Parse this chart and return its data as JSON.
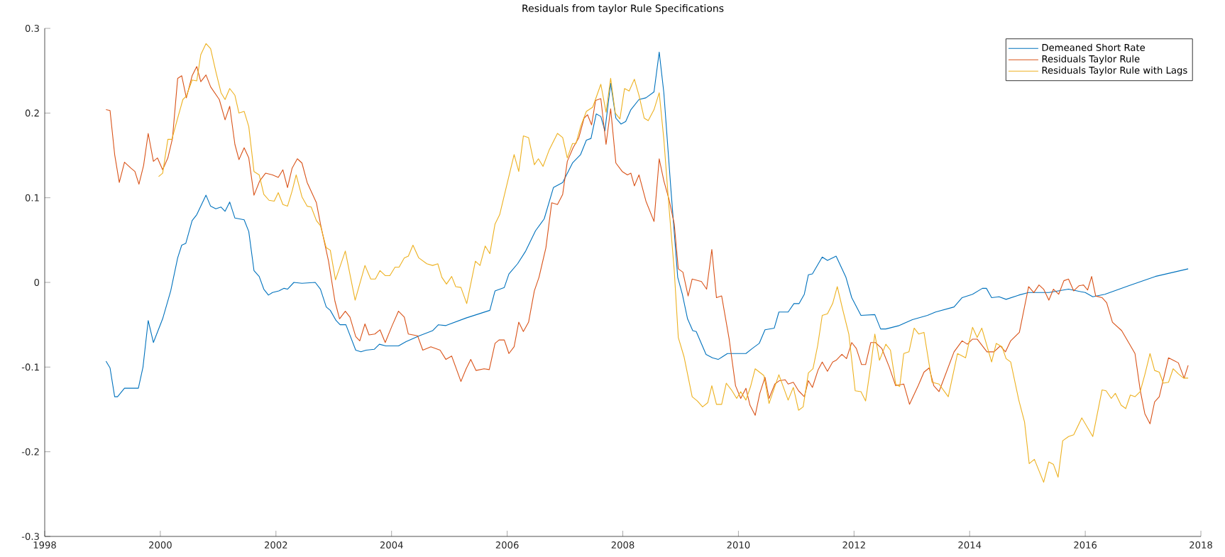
{
  "chart_data": {
    "type": "line",
    "title": "Residuals from taylor Rule Specifications",
    "xlim": [
      1998,
      2018
    ],
    "ylim": [
      -0.3,
      0.3
    ],
    "xticks": [
      1998,
      2000,
      2002,
      2004,
      2006,
      2008,
      2010,
      2012,
      2014,
      2016,
      2018
    ],
    "yticks": [
      -0.3,
      -0.2,
      -0.1,
      0,
      0.1,
      0.2,
      0.3
    ],
    "legend": "top right",
    "series": [
      {
        "name": "Demeaned Short Rate",
        "color": "#0072bd",
        "x": [
          1999.06,
          1999.13,
          1999.21,
          1999.26,
          1999.38,
          1999.49,
          1999.62,
          1999.7,
          1999.79,
          1999.88,
          2000.04,
          2000.18,
          2000.3,
          2000.37,
          2000.44,
          2000.55,
          2000.63,
          2000.79,
          2000.87,
          2000.96,
          2001.05,
          2001.12,
          2001.2,
          2001.29,
          2001.45,
          2001.53,
          2001.62,
          2001.71,
          2001.79,
          2001.87,
          2001.94,
          2002.05,
          2002.14,
          2002.2,
          2002.31,
          2002.45,
          2002.68,
          2002.77,
          2002.87,
          2002.94,
          2003.04,
          2003.11,
          2003.21,
          2003.38,
          2003.47,
          2003.56,
          2003.7,
          2003.79,
          2003.9,
          2004.12,
          2004.25,
          2004.48,
          2004.71,
          2004.81,
          2004.94,
          2005.29,
          2005.7,
          2005.79,
          2005.95,
          2006.03,
          2006.18,
          2006.32,
          2006.49,
          2006.64,
          2006.8,
          2006.96,
          2007.13,
          2007.27,
          2007.37,
          2007.45,
          2007.54,
          2007.62,
          2007.69,
          2007.79,
          2007.88,
          2007.97,
          2008.05,
          2008.14,
          2008.28,
          2008.4,
          2008.54,
          2008.63,
          2008.71,
          2008.83,
          2008.95,
          2009.03,
          2009.12,
          2009.21,
          2009.27,
          2009.44,
          2009.55,
          2009.65,
          2009.72,
          2009.81,
          2009.9,
          2010.13,
          2010.24,
          2010.36,
          2010.46,
          2010.62,
          2010.7,
          2010.86,
          2010.96,
          2011.05,
          2011.14,
          2011.21,
          2011.28,
          2011.45,
          2011.54,
          2011.69,
          2011.86,
          2011.96,
          2012.12,
          2012.36,
          2012.46,
          2012.55,
          2012.78,
          2013.01,
          2013.27,
          2013.41,
          2013.73,
          2013.87,
          2014.05,
          2014.22,
          2014.29,
          2014.38,
          2014.51,
          2014.63,
          2014.85,
          2015.02,
          2015.37,
          2015.71,
          2016.0,
          2016.13,
          2016.34,
          2016.75,
          2017.21,
          2017.78
        ],
        "values": [
          -0.093,
          -0.101,
          -0.135,
          -0.135,
          -0.125,
          -0.125,
          -0.125,
          -0.1,
          -0.045,
          -0.071,
          -0.043,
          -0.01,
          0.029,
          0.044,
          0.046,
          0.073,
          0.08,
          0.103,
          0.09,
          0.087,
          0.089,
          0.084,
          0.095,
          0.076,
          0.074,
          0.06,
          0.014,
          0.007,
          -0.008,
          -0.015,
          -0.012,
          -0.01,
          -0.007,
          -0.008,
          0.0,
          -0.001,
          0.0,
          -0.008,
          -0.029,
          -0.033,
          -0.045,
          -0.05,
          -0.05,
          -0.08,
          -0.082,
          -0.08,
          -0.079,
          -0.073,
          -0.075,
          -0.075,
          -0.07,
          -0.063,
          -0.057,
          -0.05,
          -0.051,
          -0.042,
          -0.033,
          -0.01,
          -0.006,
          0.01,
          0.022,
          0.037,
          0.061,
          0.075,
          0.112,
          0.118,
          0.141,
          0.151,
          0.168,
          0.17,
          0.199,
          0.196,
          0.179,
          0.235,
          0.194,
          0.187,
          0.19,
          0.204,
          0.216,
          0.218,
          0.225,
          0.272,
          0.224,
          0.112,
          0.006,
          -0.014,
          -0.043,
          -0.057,
          -0.058,
          -0.085,
          -0.089,
          -0.091,
          -0.088,
          -0.084,
          -0.084,
          -0.084,
          -0.078,
          -0.072,
          -0.056,
          -0.054,
          -0.035,
          -0.035,
          -0.025,
          -0.025,
          -0.014,
          0.009,
          0.01,
          0.03,
          0.026,
          0.031,
          0.006,
          -0.018,
          -0.039,
          -0.038,
          -0.055,
          -0.055,
          -0.051,
          -0.044,
          -0.039,
          -0.035,
          -0.029,
          -0.018,
          -0.014,
          -0.007,
          -0.007,
          -0.018,
          -0.017,
          -0.02,
          -0.015,
          -0.012,
          -0.012,
          -0.008,
          -0.012,
          -0.017,
          -0.014,
          -0.004,
          0.007,
          0.016
        ]
      },
      {
        "name": "Residuals Taylor Rule",
        "color": "#d95319",
        "x": [
          1999.06,
          1999.13,
          1999.21,
          1999.29,
          1999.38,
          1999.49,
          1999.56,
          1999.63,
          1999.71,
          1999.79,
          1999.88,
          1999.95,
          2000.04,
          2000.13,
          2000.21,
          2000.3,
          2000.37,
          2000.45,
          2000.55,
          2000.63,
          2000.7,
          2000.79,
          2000.87,
          2001.02,
          2001.12,
          2001.2,
          2001.29,
          2001.36,
          2001.45,
          2001.53,
          2001.62,
          2001.72,
          2001.82,
          2001.94,
          2002.04,
          2002.12,
          2002.2,
          2002.28,
          2002.37,
          2002.45,
          2002.54,
          2002.7,
          2002.77,
          2002.91,
          2003.02,
          2003.1,
          2003.2,
          2003.28,
          2003.38,
          2003.45,
          2003.54,
          2003.61,
          2003.71,
          2003.8,
          2003.89,
          2004.01,
          2004.12,
          2004.22,
          2004.29,
          2004.45,
          2004.54,
          2004.68,
          2004.84,
          2004.94,
          2005.04,
          2005.2,
          2005.29,
          2005.37,
          2005.46,
          2005.6,
          2005.69,
          2005.79,
          2005.86,
          2005.95,
          2006.03,
          2006.12,
          2006.2,
          2006.28,
          2006.37,
          2006.47,
          2006.55,
          2006.67,
          2006.77,
          2006.87,
          2006.96,
          2007.04,
          2007.14,
          2007.24,
          2007.33,
          2007.39,
          2007.46,
          2007.53,
          2007.62,
          2007.71,
          2007.79,
          2007.88,
          2007.99,
          2008.08,
          2008.14,
          2008.2,
          2008.28,
          2008.4,
          2008.54,
          2008.63,
          2008.71,
          2008.8,
          2008.89,
          2008.96,
          2009.04,
          2009.13,
          2009.2,
          2009.36,
          2009.45,
          2009.54,
          2009.62,
          2009.71,
          2009.84,
          2009.95,
          2010.04,
          2010.13,
          2010.2,
          2010.29,
          2010.37,
          2010.46,
          2010.53,
          2010.63,
          2010.71,
          2010.81,
          2010.86,
          2010.95,
          2011.04,
          2011.14,
          2011.21,
          2011.28,
          2011.38,
          2011.45,
          2011.54,
          2011.63,
          2011.69,
          2011.79,
          2011.87,
          2011.96,
          2012.04,
          2012.13,
          2012.2,
          2012.29,
          2012.37,
          2012.48,
          2012.61,
          2012.72,
          2012.86,
          2012.96,
          2013.11,
          2013.21,
          2013.3,
          2013.38,
          2013.47,
          2013.73,
          2013.87,
          2013.96,
          2014.05,
          2014.13,
          2014.3,
          2014.42,
          2014.53,
          2014.62,
          2014.71,
          2014.86,
          2015.02,
          2015.11,
          2015.2,
          2015.28,
          2015.37,
          2015.45,
          2015.54,
          2015.63,
          2015.71,
          2015.8,
          2015.89,
          2015.97,
          2016.04,
          2016.11,
          2016.18,
          2016.29,
          2016.37,
          2016.47,
          2016.63,
          2016.75,
          2016.86,
          2016.95,
          2017.03,
          2017.12,
          2017.2,
          2017.28,
          2017.44,
          2017.61,
          2017.71,
          2017.78
        ],
        "values": [
          0.204,
          0.203,
          0.151,
          0.118,
          0.142,
          0.135,
          0.131,
          0.116,
          0.138,
          0.176,
          0.143,
          0.147,
          0.133,
          0.147,
          0.17,
          0.241,
          0.244,
          0.218,
          0.244,
          0.255,
          0.237,
          0.245,
          0.231,
          0.216,
          0.192,
          0.208,
          0.163,
          0.145,
          0.159,
          0.147,
          0.103,
          0.12,
          0.129,
          0.127,
          0.124,
          0.133,
          0.112,
          0.135,
          0.146,
          0.141,
          0.118,
          0.094,
          0.069,
          0.025,
          -0.022,
          -0.043,
          -0.034,
          -0.041,
          -0.064,
          -0.069,
          -0.049,
          -0.062,
          -0.061,
          -0.056,
          -0.071,
          -0.051,
          -0.034,
          -0.041,
          -0.061,
          -0.063,
          -0.08,
          -0.076,
          -0.08,
          -0.091,
          -0.087,
          -0.117,
          -0.102,
          -0.091,
          -0.104,
          -0.102,
          -0.103,
          -0.072,
          -0.068,
          -0.068,
          -0.084,
          -0.076,
          -0.047,
          -0.058,
          -0.047,
          -0.01,
          0.006,
          0.041,
          0.094,
          0.092,
          0.104,
          0.143,
          0.159,
          0.171,
          0.194,
          0.198,
          0.186,
          0.215,
          0.217,
          0.163,
          0.205,
          0.141,
          0.131,
          0.127,
          0.129,
          0.114,
          0.127,
          0.096,
          0.072,
          0.146,
          0.12,
          0.098,
          0.069,
          0.016,
          0.012,
          -0.016,
          0.004,
          0.001,
          -0.008,
          0.039,
          -0.018,
          -0.016,
          -0.067,
          -0.122,
          -0.137,
          -0.125,
          -0.145,
          -0.157,
          -0.131,
          -0.112,
          -0.137,
          -0.12,
          -0.116,
          -0.115,
          -0.12,
          -0.118,
          -0.128,
          -0.135,
          -0.116,
          -0.124,
          -0.103,
          -0.094,
          -0.105,
          -0.094,
          -0.092,
          -0.085,
          -0.09,
          -0.071,
          -0.078,
          -0.097,
          -0.097,
          -0.071,
          -0.071,
          -0.078,
          -0.1,
          -0.122,
          -0.12,
          -0.144,
          -0.122,
          -0.106,
          -0.101,
          -0.122,
          -0.129,
          -0.082,
          -0.069,
          -0.073,
          -0.067,
          -0.067,
          -0.082,
          -0.082,
          -0.075,
          -0.082,
          -0.069,
          -0.059,
          -0.005,
          -0.012,
          -0.003,
          -0.008,
          -0.021,
          -0.008,
          -0.014,
          0.002,
          0.004,
          -0.01,
          -0.004,
          -0.003,
          -0.009,
          0.007,
          -0.016,
          -0.018,
          -0.024,
          -0.047,
          -0.057,
          -0.071,
          -0.084,
          -0.127,
          -0.155,
          -0.167,
          -0.141,
          -0.135,
          -0.089,
          -0.095,
          -0.113,
          -0.098
        ]
      },
      {
        "name": "Residuals Taylor Rule with Lags",
        "color": "#edb120",
        "x": [
          1999.97,
          2000.04,
          2000.13,
          2000.2,
          2000.3,
          2000.39,
          2000.45,
          2000.55,
          2000.63,
          2000.7,
          2000.79,
          2000.87,
          2000.96,
          2001.05,
          2001.12,
          2001.2,
          2001.29,
          2001.36,
          2001.45,
          2001.53,
          2001.62,
          2001.71,
          2001.79,
          2001.88,
          2001.97,
          2002.04,
          2002.12,
          2002.2,
          2002.28,
          2002.35,
          2002.45,
          2002.54,
          2002.61,
          2002.7,
          2002.77,
          2002.87,
          2002.94,
          2003.03,
          2003.2,
          2003.37,
          2003.54,
          2003.64,
          2003.72,
          2003.8,
          2003.89,
          2003.97,
          2004.06,
          2004.13,
          2004.22,
          2004.29,
          2004.37,
          2004.47,
          2004.61,
          2004.71,
          2004.8,
          2004.87,
          2004.95,
          2005.04,
          2005.11,
          2005.2,
          2005.3,
          2005.45,
          2005.53,
          2005.62,
          2005.7,
          2005.79,
          2005.87,
          2006.12,
          2006.2,
          2006.28,
          2006.37,
          2006.47,
          2006.54,
          2006.62,
          2006.73,
          2006.87,
          2006.96,
          2007.04,
          2007.13,
          2007.19,
          2007.27,
          2007.37,
          2007.48,
          2007.62,
          2007.71,
          2007.79,
          2007.87,
          2007.95,
          2008.03,
          2008.11,
          2008.2,
          2008.28,
          2008.37,
          2008.44,
          2008.54,
          2008.63,
          2008.71,
          2008.8,
          2008.89,
          2008.96,
          2009.06,
          2009.2,
          2009.29,
          2009.38,
          2009.47,
          2009.54,
          2009.62,
          2009.71,
          2009.79,
          2009.88,
          2009.97,
          2010.04,
          2010.13,
          2010.21,
          2010.29,
          2010.44,
          2010.53,
          2010.7,
          2010.86,
          2010.95,
          2011.04,
          2011.12,
          2011.21,
          2011.29,
          2011.37,
          2011.45,
          2011.54,
          2011.63,
          2011.71,
          2011.8,
          2011.91,
          2012.02,
          2012.12,
          2012.2,
          2012.29,
          2012.36,
          2012.44,
          2012.55,
          2012.63,
          2012.72,
          2012.79,
          2012.86,
          2012.95,
          2013.04,
          2013.12,
          2013.21,
          2013.35,
          2013.47,
          2013.63,
          2013.79,
          2013.93,
          2014.05,
          2014.13,
          2014.21,
          2014.38,
          2014.46,
          2014.56,
          2014.63,
          2014.71,
          2014.85,
          2014.95,
          2015.03,
          2015.12,
          2015.28,
          2015.37,
          2015.45,
          2015.53,
          2015.61,
          2015.71,
          2015.8,
          2015.94,
          2016.13,
          2016.29,
          2016.36,
          2016.45,
          2016.52,
          2016.62,
          2016.7,
          2016.78,
          2016.86,
          2016.95,
          2017.03,
          2017.12,
          2017.2,
          2017.28,
          2017.35,
          2017.44,
          2017.52,
          2017.61,
          2017.7,
          2017.78
        ],
        "values": [
          0.125,
          0.129,
          0.169,
          0.169,
          0.194,
          0.216,
          0.22,
          0.239,
          0.238,
          0.269,
          0.282,
          0.276,
          0.249,
          0.224,
          0.216,
          0.229,
          0.221,
          0.2,
          0.202,
          0.184,
          0.131,
          0.127,
          0.104,
          0.097,
          0.096,
          0.106,
          0.092,
          0.09,
          0.108,
          0.127,
          0.101,
          0.09,
          0.089,
          0.073,
          0.067,
          0.041,
          0.038,
          0.003,
          0.037,
          -0.021,
          0.02,
          0.004,
          0.004,
          0.014,
          0.008,
          0.008,
          0.018,
          0.018,
          0.029,
          0.031,
          0.044,
          0.029,
          0.022,
          0.02,
          0.022,
          0.006,
          -0.002,
          0.007,
          -0.005,
          -0.006,
          -0.025,
          0.025,
          0.02,
          0.043,
          0.034,
          0.069,
          0.08,
          0.151,
          0.131,
          0.173,
          0.171,
          0.139,
          0.146,
          0.137,
          0.157,
          0.176,
          0.171,
          0.147,
          0.164,
          0.164,
          0.184,
          0.202,
          0.207,
          0.234,
          0.201,
          0.241,
          0.2,
          0.193,
          0.229,
          0.226,
          0.24,
          0.221,
          0.194,
          0.191,
          0.204,
          0.224,
          0.169,
          0.088,
          0.014,
          -0.065,
          -0.088,
          -0.135,
          -0.14,
          -0.147,
          -0.142,
          -0.122,
          -0.144,
          -0.144,
          -0.119,
          -0.127,
          -0.137,
          -0.129,
          -0.139,
          -0.123,
          -0.102,
          -0.11,
          -0.143,
          -0.109,
          -0.139,
          -0.124,
          -0.151,
          -0.147,
          -0.107,
          -0.102,
          -0.075,
          -0.039,
          -0.037,
          -0.025,
          -0.005,
          -0.031,
          -0.061,
          -0.128,
          -0.129,
          -0.14,
          -0.098,
          -0.061,
          -0.092,
          -0.073,
          -0.08,
          -0.12,
          -0.123,
          -0.084,
          -0.082,
          -0.054,
          -0.061,
          -0.059,
          -0.118,
          -0.12,
          -0.135,
          -0.084,
          -0.089,
          -0.053,
          -0.065,
          -0.054,
          -0.094,
          -0.072,
          -0.076,
          -0.09,
          -0.094,
          -0.139,
          -0.165,
          -0.214,
          -0.209,
          -0.236,
          -0.212,
          -0.215,
          -0.23,
          -0.187,
          -0.182,
          -0.18,
          -0.16,
          -0.182,
          -0.127,
          -0.128,
          -0.137,
          -0.131,
          -0.145,
          -0.149,
          -0.133,
          -0.135,
          -0.129,
          -0.109,
          -0.084,
          -0.104,
          -0.106,
          -0.119,
          -0.118,
          -0.102,
          -0.108,
          -0.113,
          -0.113
        ]
      }
    ]
  }
}
